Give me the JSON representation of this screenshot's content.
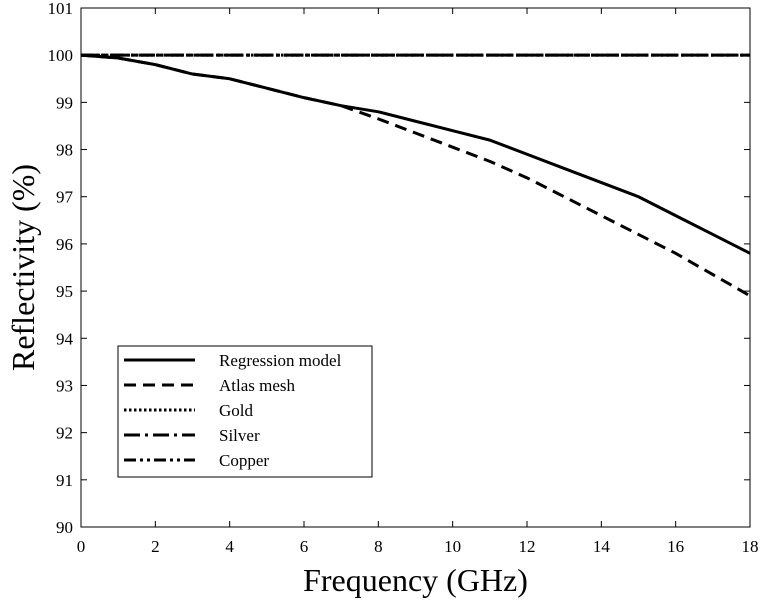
{
  "chart_data": {
    "type": "line",
    "title": "",
    "xlabel": "Frequency (GHz)",
    "ylabel": "Reflectivity (%)",
    "xlim": [
      0,
      18
    ],
    "ylim": [
      90,
      101
    ],
    "xticks": [
      0,
      2,
      4,
      6,
      8,
      10,
      12,
      14,
      16,
      18
    ],
    "yticks": [
      90,
      91,
      92,
      93,
      94,
      95,
      96,
      97,
      98,
      99,
      100,
      101
    ],
    "grid": false,
    "legend_position": "bottom-left",
    "series": [
      {
        "name": "Regression model",
        "style": "solid",
        "x": [
          0,
          1,
          2,
          3,
          4,
          5,
          6,
          7,
          8,
          9,
          10,
          11,
          12,
          13,
          14,
          15,
          16,
          17,
          18
        ],
        "y": [
          100.0,
          99.94,
          99.8,
          99.6,
          99.5,
          99.3,
          99.1,
          98.93,
          98.8,
          98.6,
          98.4,
          98.2,
          97.9,
          97.6,
          97.3,
          97.0,
          96.6,
          96.2,
          95.8
        ]
      },
      {
        "name": "Atlas mesh",
        "style": "dashed",
        "x": [
          0,
          1,
          2,
          3,
          4,
          5,
          6,
          7,
          8,
          9,
          10,
          11,
          12,
          13,
          14,
          15,
          16,
          17,
          18
        ],
        "y": [
          100.0,
          99.94,
          99.8,
          99.6,
          99.5,
          99.3,
          99.1,
          98.93,
          98.65,
          98.35,
          98.05,
          97.75,
          97.4,
          97.0,
          96.6,
          96.2,
          95.8,
          95.35,
          94.9
        ]
      },
      {
        "name": "Gold",
        "style": "dotted",
        "x": [
          0,
          18
        ],
        "y": [
          100.0,
          100.0
        ]
      },
      {
        "name": "Silver",
        "style": "dashdot",
        "x": [
          0,
          18
        ],
        "y": [
          100.0,
          100.0
        ]
      },
      {
        "name": "Copper",
        "style": "dashdotdot",
        "x": [
          0,
          18
        ],
        "y": [
          100.0,
          100.0
        ]
      }
    ]
  }
}
